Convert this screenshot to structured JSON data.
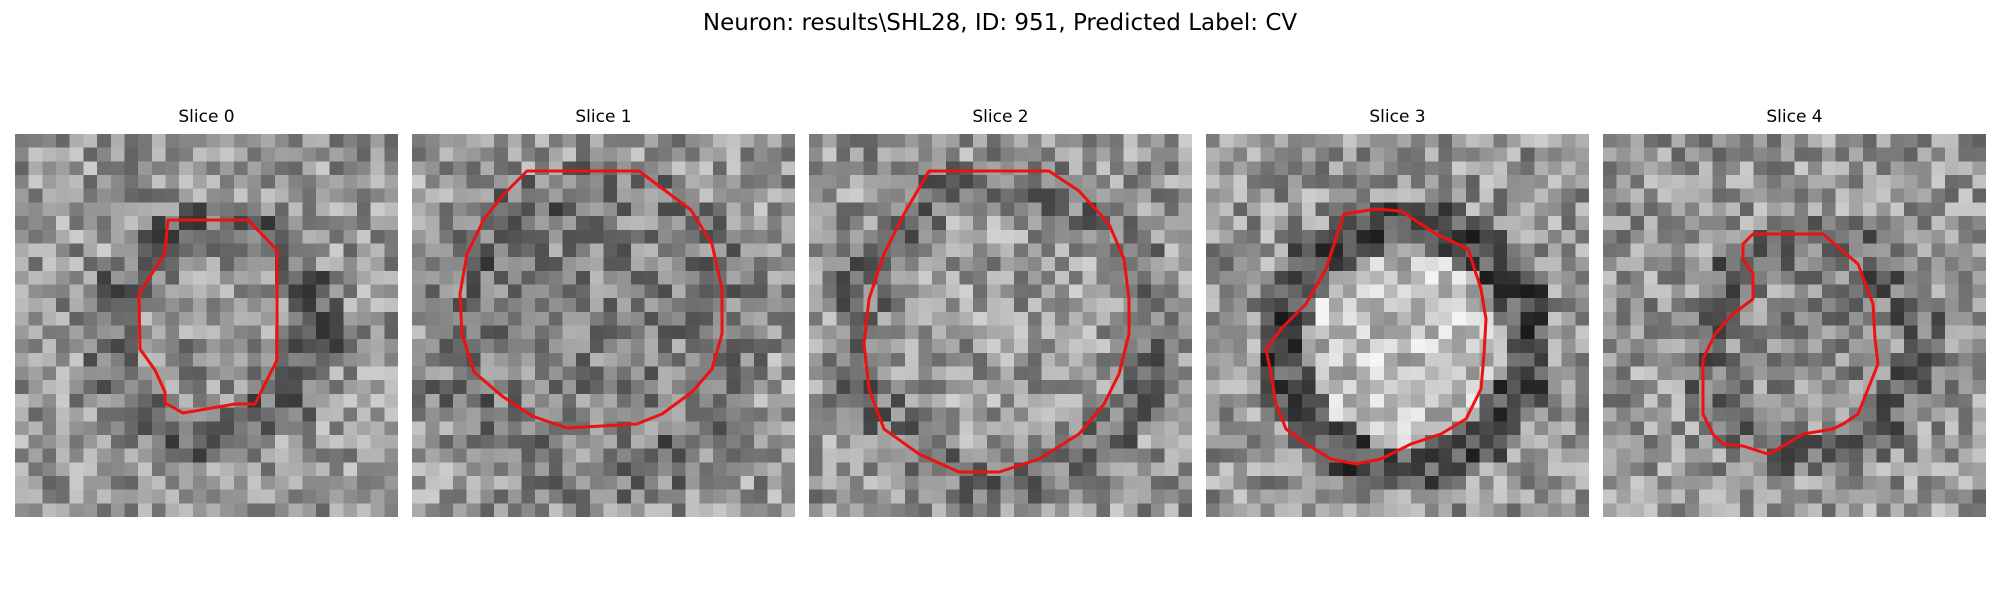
{
  "figure": {
    "suptitle": "Neuron: results\\SHL28, ID: 951, Predicted Label: CV"
  },
  "slices": [
    {
      "title": "Slice 0"
    },
    {
      "title": "Slice 1"
    },
    {
      "title": "Slice 2"
    },
    {
      "title": "Slice 3"
    },
    {
      "title": "Slice 4"
    }
  ],
  "colors": {
    "contour": "#ee1111",
    "background": "#ffffff"
  }
}
